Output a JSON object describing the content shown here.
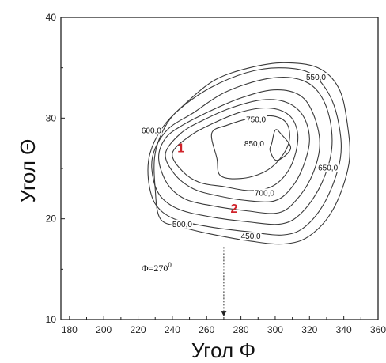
{
  "chart_data": {
    "type": "contour",
    "xlabel": "Угол Φ",
    "ylabel": "Угол Θ",
    "xlim": [
      175,
      360
    ],
    "ylim": [
      10,
      40
    ],
    "x_ticks": [
      "180",
      "200",
      "220",
      "240",
      "260",
      "280",
      "300",
      "320",
      "340",
      "360"
    ],
    "y_ticks": [
      "10",
      "20",
      "30",
      "40"
    ],
    "grid": false,
    "contours": [
      {
        "level": 450,
        "label": "450,0",
        "label_at": [
          280,
          18.0
        ],
        "points": [
          [
            230,
            23
          ],
          [
            233,
            20
          ],
          [
            245,
            19.2
          ],
          [
            262,
            18.5
          ],
          [
            285,
            17.8
          ],
          [
            305,
            17.5
          ],
          [
            320,
            18.3
          ],
          [
            334,
            21
          ],
          [
            343,
            25.5
          ],
          [
            342,
            29.5
          ],
          [
            337,
            33
          ],
          [
            325,
            35
          ],
          [
            305,
            35.5
          ],
          [
            285,
            35
          ],
          [
            265,
            33.8
          ],
          [
            248,
            31.5
          ],
          [
            237,
            29.5
          ],
          [
            230,
            26.5
          ]
        ]
      },
      {
        "level": 500,
        "label": "500,0",
        "label_at": [
          240,
          19.2
        ],
        "points": [
          [
            226,
            24
          ],
          [
            230,
            21.5
          ],
          [
            241,
            20
          ],
          [
            262,
            19.2
          ],
          [
            285,
            18.7
          ],
          [
            305,
            18.4
          ],
          [
            318,
            19.3
          ],
          [
            330,
            22
          ],
          [
            338,
            26
          ],
          [
            337,
            29.5
          ],
          [
            331,
            32.5
          ],
          [
            320,
            34.5
          ],
          [
            302,
            35
          ],
          [
            283,
            34.5
          ],
          [
            262,
            33
          ],
          [
            245,
            31
          ],
          [
            234,
            29
          ],
          [
            227,
            26.5
          ]
        ]
      },
      {
        "level": 550,
        "label": "550,0",
        "label_at": [
          318,
          33.8
        ],
        "points": [
          [
            228,
            25
          ],
          [
            232,
            22.5
          ],
          [
            243,
            21
          ],
          [
            262,
            20.2
          ],
          [
            284,
            19.7
          ],
          [
            304,
            19.5
          ],
          [
            316,
            20.7
          ],
          [
            327,
            23.5
          ],
          [
            333,
            27
          ],
          [
            331,
            30.5
          ],
          [
            323,
            33
          ],
          [
            310,
            34
          ],
          [
            292,
            33.8
          ],
          [
            270,
            32.5
          ],
          [
            252,
            30.5
          ],
          [
            238,
            29
          ],
          [
            230,
            27
          ]
        ]
      },
      {
        "level": 600,
        "label": "600,0",
        "label_at": [
          222,
          28.5
        ],
        "points": [
          [
            232,
            26
          ],
          [
            237,
            23.5
          ],
          [
            247,
            22
          ],
          [
            263,
            21.3
          ],
          [
            283,
            20.8
          ],
          [
            302,
            20.6
          ],
          [
            313,
            22
          ],
          [
            322,
            24.5
          ],
          [
            326,
            27.5
          ],
          [
            322,
            30.5
          ],
          [
            314,
            32.3
          ],
          [
            299,
            32.8
          ],
          [
            280,
            32
          ],
          [
            262,
            30.7
          ],
          [
            246,
            29.3
          ],
          [
            236,
            28
          ]
        ]
      },
      {
        "level": 650,
        "label": "650,0",
        "label_at": [
          325,
          24.8
        ],
        "points": [
          [
            236,
            26.5
          ],
          [
            241,
            24.5
          ],
          [
            252,
            23
          ],
          [
            266,
            22.3
          ],
          [
            284,
            21.8
          ],
          [
            300,
            21.8
          ],
          [
            310,
            23.2
          ],
          [
            317,
            25.5
          ],
          [
            320,
            28
          ],
          [
            316,
            30.3
          ],
          [
            306,
            31.6
          ],
          [
            292,
            31.8
          ],
          [
            274,
            31
          ],
          [
            258,
            29.8
          ],
          [
            245,
            28.5
          ]
        ]
      },
      {
        "level": 700,
        "label": "700,0",
        "label_at": [
          288,
          22.3
        ],
        "points": [
          [
            240,
            26.5
          ],
          [
            246,
            24.7
          ],
          [
            256,
            23.6
          ],
          [
            270,
            23.2
          ],
          [
            285,
            22.8
          ],
          [
            298,
            23.2
          ],
          [
            307,
            24.6
          ],
          [
            312,
            26.6
          ],
          [
            313,
            28.6
          ],
          [
            308,
            30.3
          ],
          [
            296,
            31
          ],
          [
            280,
            30.6
          ],
          [
            264,
            29.5
          ],
          [
            250,
            28.2
          ]
        ]
      },
      {
        "level": 750,
        "label": "750,0",
        "label_at": [
          283,
          29.6
        ],
        "points": [
          [
            263,
            28.5
          ],
          [
            266,
            26
          ],
          [
            268,
            24.3
          ],
          [
            280,
            24
          ],
          [
            293,
            24.6
          ],
          [
            302,
            25.8
          ],
          [
            308,
            27.6
          ],
          [
            307,
            29.4
          ],
          [
            299,
            30.2
          ],
          [
            286,
            30
          ],
          [
            272,
            29.3
          ]
        ]
      },
      {
        "level": 850,
        "label": "850,0",
        "label_at": [
          282,
          27.2
        ],
        "points": [
          [
            298,
            27.5
          ],
          [
            300,
            28.8
          ],
          [
            303,
            28.5
          ],
          [
            309,
            27
          ],
          [
            301,
            25.8
          ],
          [
            297,
            26.8
          ]
        ]
      }
    ],
    "region_labels": [
      {
        "text": "1",
        "at": [
          245,
          26.6
        ]
      },
      {
        "text": "2",
        "at": [
          276,
          20.6
        ]
      }
    ],
    "annotation": {
      "text": "Φ=270",
      "superscript": "0",
      "at": [
        222,
        14.8
      ]
    },
    "arrow": {
      "from": [
        270,
        17.2
      ],
      "to": [
        270,
        10.3
      ]
    }
  }
}
